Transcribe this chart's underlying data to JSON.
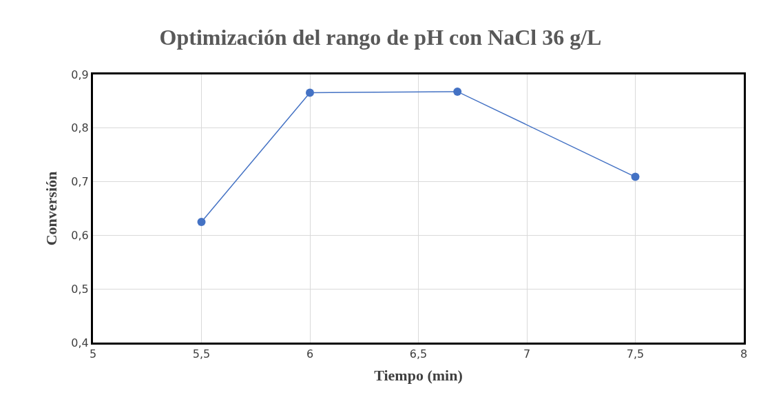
{
  "chart_data": {
    "type": "line",
    "title": "Optimización del rango de pH con NaCl 36 g/L",
    "xlabel": "Tiempo (min)",
    "ylabel": "Conversión",
    "x": [
      5.5,
      6,
      6.68,
      7.5
    ],
    "series": [
      {
        "color": "#4472c4",
        "values": [
          0.625,
          0.866,
          0.868,
          0.709
        ]
      }
    ],
    "xlim": [
      5,
      8
    ],
    "xticks": [
      5,
      {
        "value": 5.5,
        "label": "5,5"
      },
      6,
      {
        "value": 6.5,
        "label": "6,5"
      },
      7,
      {
        "value": 7.5,
        "label": "7,5"
      },
      8
    ],
    "ylim": [
      0.4,
      0.9
    ],
    "yticks": [
      {
        "value": 0.4,
        "label": "0,4"
      },
      {
        "value": 0.5,
        "label": "0,5"
      },
      {
        "value": 0.6,
        "label": "0,6"
      },
      {
        "value": 0.7,
        "label": "0,7"
      },
      {
        "value": 0.8,
        "label": "0,8"
      },
      {
        "value": 0.9,
        "label": "0,9"
      }
    ],
    "grid": true,
    "marker": "circle",
    "line_style": "solid"
  }
}
